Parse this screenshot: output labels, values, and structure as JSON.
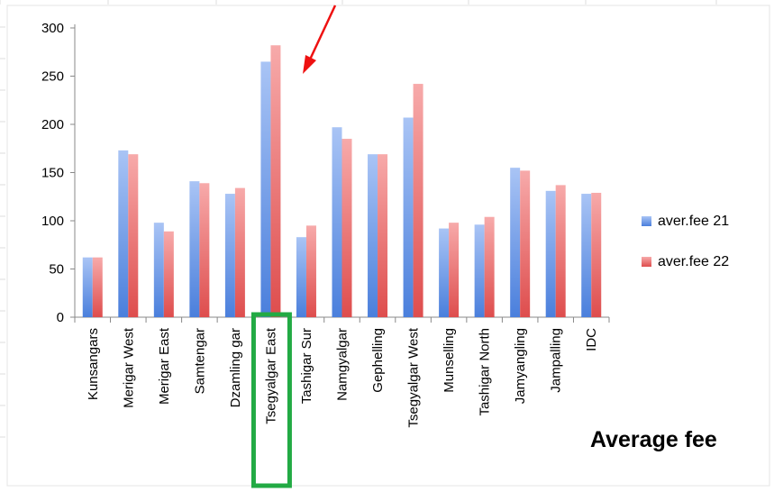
{
  "chart_data": {
    "type": "bar",
    "title": "Average fee",
    "xlabel": "",
    "ylabel": "",
    "ylim": [
      0,
      300
    ],
    "yticks": [
      0,
      50,
      100,
      150,
      200,
      250,
      300
    ],
    "grid": false,
    "legend_position": "right",
    "categories": [
      "Kunsangars",
      "Merigar West",
      "Merigar East",
      "Samtengar",
      "Dzamling gar",
      "Tsegyalgar East",
      "Tashigar Sur",
      "Namgyalgar",
      "Gephelling",
      "Tsegyalgar West",
      "Munselling",
      "Tashigar North",
      "Jamyangling",
      "Jampalling",
      "IDC"
    ],
    "series": [
      {
        "name": "aver.fee 21",
        "color": "#6f9ae6",
        "values": [
          62,
          173,
          98,
          141,
          128,
          265,
          83,
          197,
          169,
          207,
          92,
          96,
          155,
          131,
          128
        ]
      },
      {
        "name": "aver.fee 22",
        "color": "#ee8080",
        "values": [
          62,
          169,
          89,
          139,
          134,
          282,
          95,
          185,
          169,
          242,
          98,
          104,
          152,
          137,
          129
        ]
      }
    ],
    "annotations": {
      "highlight_category": "Tsegyalgar East",
      "highlight_color": "#22aa44",
      "arrow_color": "#ee1111"
    }
  }
}
